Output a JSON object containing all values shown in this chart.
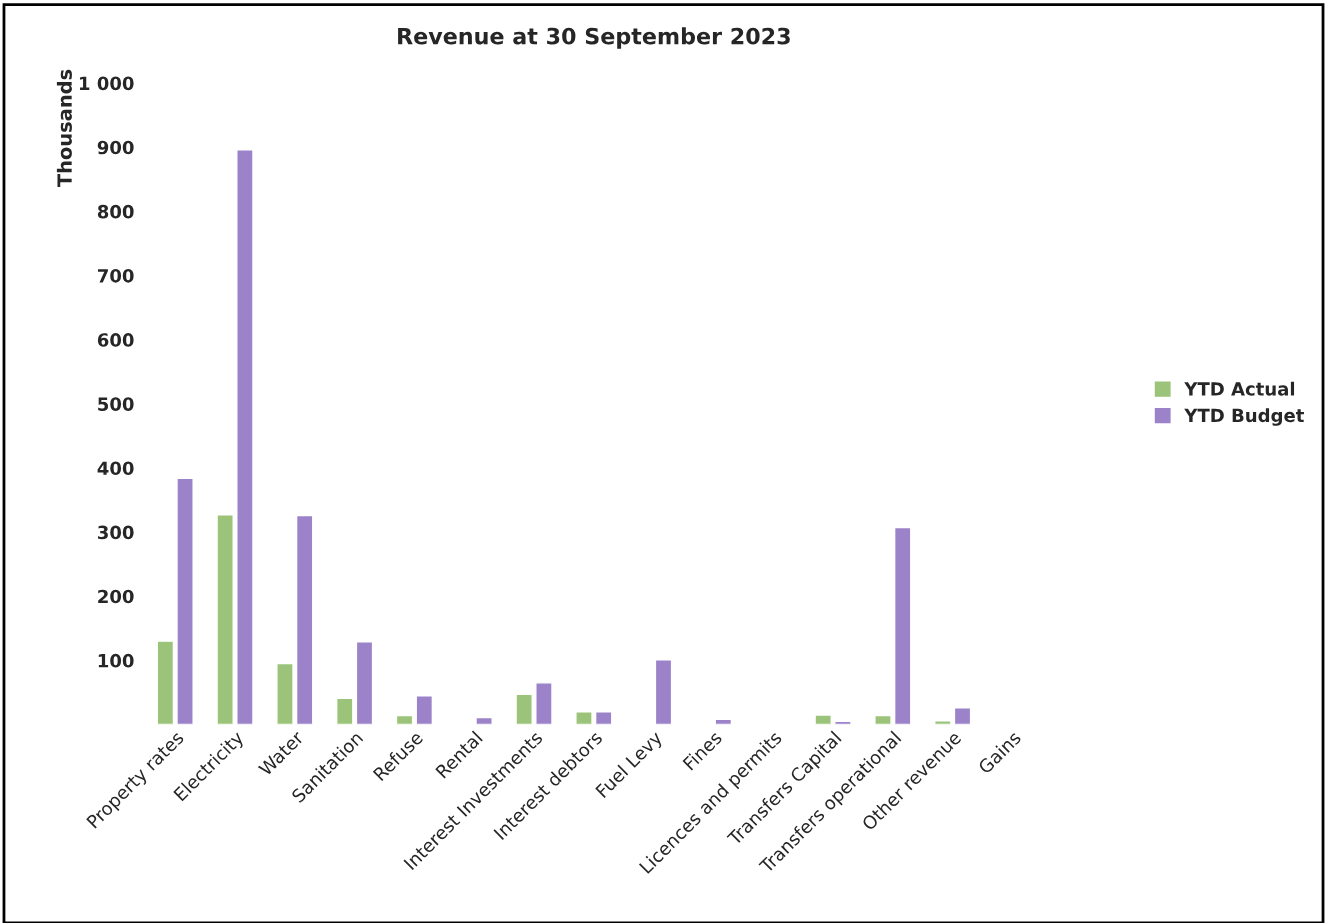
{
  "chart_data": {
    "type": "bar",
    "title": "Revenue at 30 September 2023",
    "ylabel": "Thousands",
    "categories": [
      "Property rates",
      "Electricity",
      "Water",
      "Sanitation",
      "Refuse",
      "Rental",
      "Interest Investments",
      "Interest debtors",
      "Fuel Levy",
      "Fines",
      "Licences and permits",
      "Transfers Capital",
      "Transfers operational",
      "Other revenue",
      "Gains"
    ],
    "series": [
      {
        "name": "YTD Actual",
        "color": "#9bc47a",
        "values": [
          130,
          327,
          95,
          41,
          14,
          null,
          47,
          20,
          null,
          null,
          null,
          15,
          14,
          6,
          null
        ]
      },
      {
        "name": "YTD Budget",
        "color": "#9b82c9",
        "values": [
          384,
          896,
          326,
          129,
          45,
          11,
          65,
          20,
          101,
          8,
          null,
          5,
          307,
          26,
          null
        ]
      }
    ],
    "ylim": [
      0,
      1000
    ],
    "yticks": [
      100,
      200,
      300,
      400,
      500,
      600,
      700,
      800,
      900,
      {
        "value": 1000,
        "label": "1 000"
      }
    ],
    "grid": false,
    "legend": "right"
  }
}
